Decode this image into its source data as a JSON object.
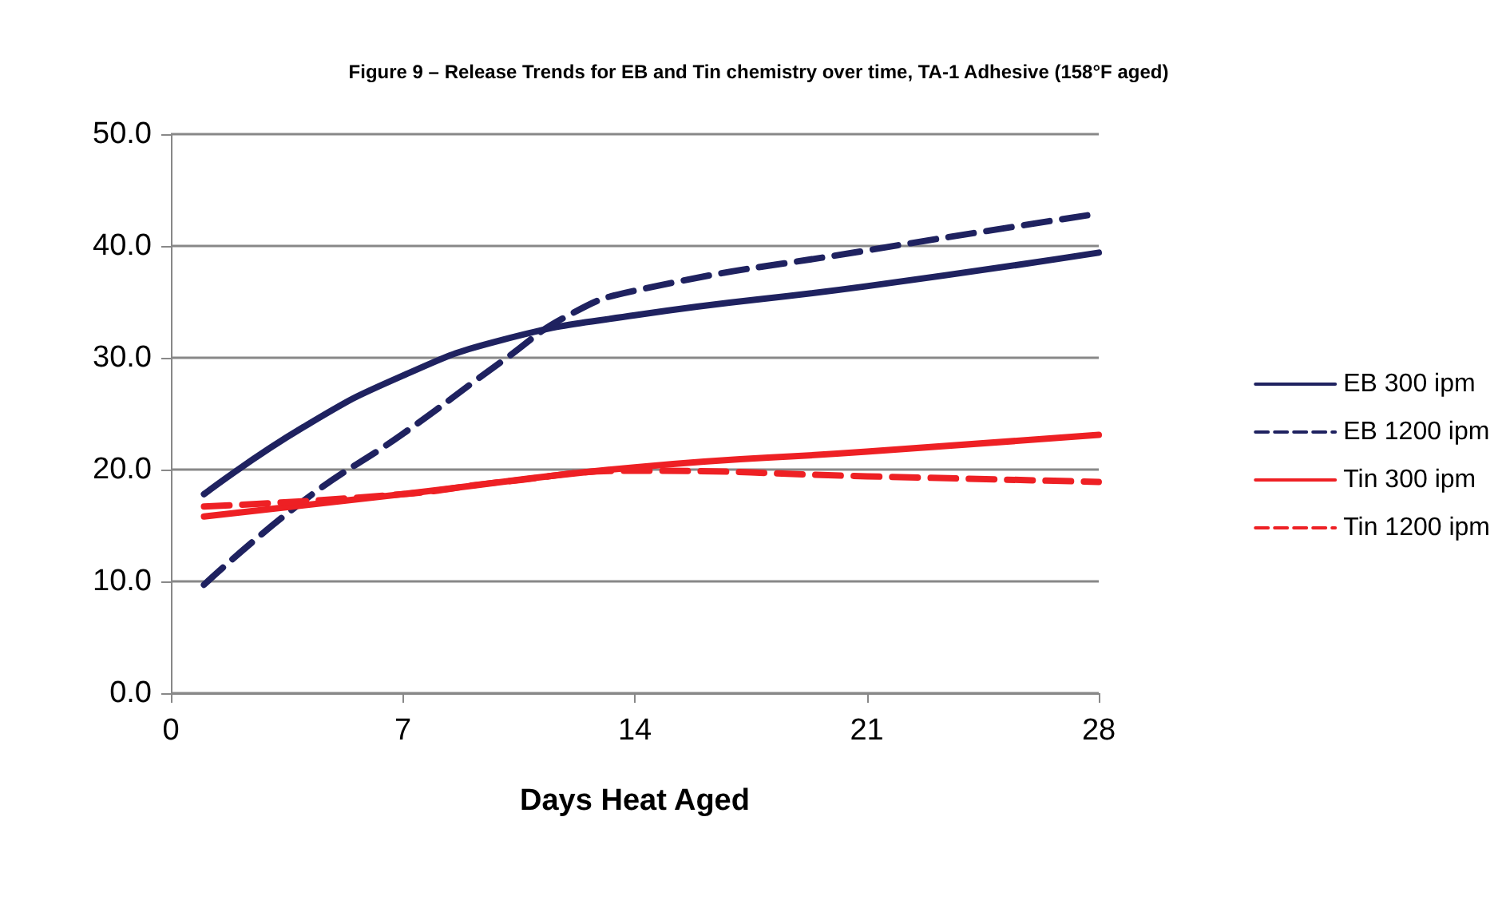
{
  "chart_data": {
    "type": "line",
    "title": "Figure 9 – Release Trends for EB and Tin chemistry over time, TA-1 Adhesive (158°F aged)",
    "xlabel": "Days Heat Aged",
    "xlim": [
      0,
      28
    ],
    "xticks": [
      0,
      7,
      14,
      21,
      28
    ],
    "ylim": [
      0,
      50
    ],
    "yticks": [
      {
        "value": 0,
        "label": "0.0"
      },
      {
        "value": 10,
        "label": "10.0"
      },
      {
        "value": 20,
        "label": "20.0"
      },
      {
        "value": 30,
        "label": "30.0"
      },
      {
        "value": 40,
        "label": "40.0"
      },
      {
        "value": 50,
        "label": "50.0"
      }
    ],
    "grid": "y",
    "legend": "right",
    "marker": "none",
    "series": [
      {
        "name": "EB 300 ipm",
        "color": "#1f2260",
        "line_style": "solid",
        "x": [
          1,
          4,
          7,
          10,
          14,
          21,
          28
        ],
        "values": [
          17.8,
          23.8,
          28.4,
          31.6,
          33.8,
          36.4,
          39.4
        ]
      },
      {
        "name": "EB 1200 ipm",
        "color": "#1f2260",
        "line_style": "dashed",
        "x": [
          1,
          4,
          7,
          10,
          12,
          14,
          21,
          28
        ],
        "values": [
          9.7,
          17.2,
          23.2,
          29.7,
          33.8,
          36,
          39.6,
          42.9
        ]
      },
      {
        "name": "Tin 300 ipm",
        "color": "#ee2024",
        "line_style": "solid",
        "x": [
          1,
          7,
          14,
          21,
          28
        ],
        "values": [
          15.8,
          17.8,
          20.2,
          21.6,
          23.1
        ]
      },
      {
        "name": "Tin 1200 ipm",
        "color": "#ee2024",
        "line_style": "dashed",
        "x": [
          1,
          7,
          10,
          14,
          21,
          28
        ],
        "values": [
          16.7,
          17.8,
          18.9,
          19.9,
          19.4,
          18.9
        ]
      }
    ]
  }
}
